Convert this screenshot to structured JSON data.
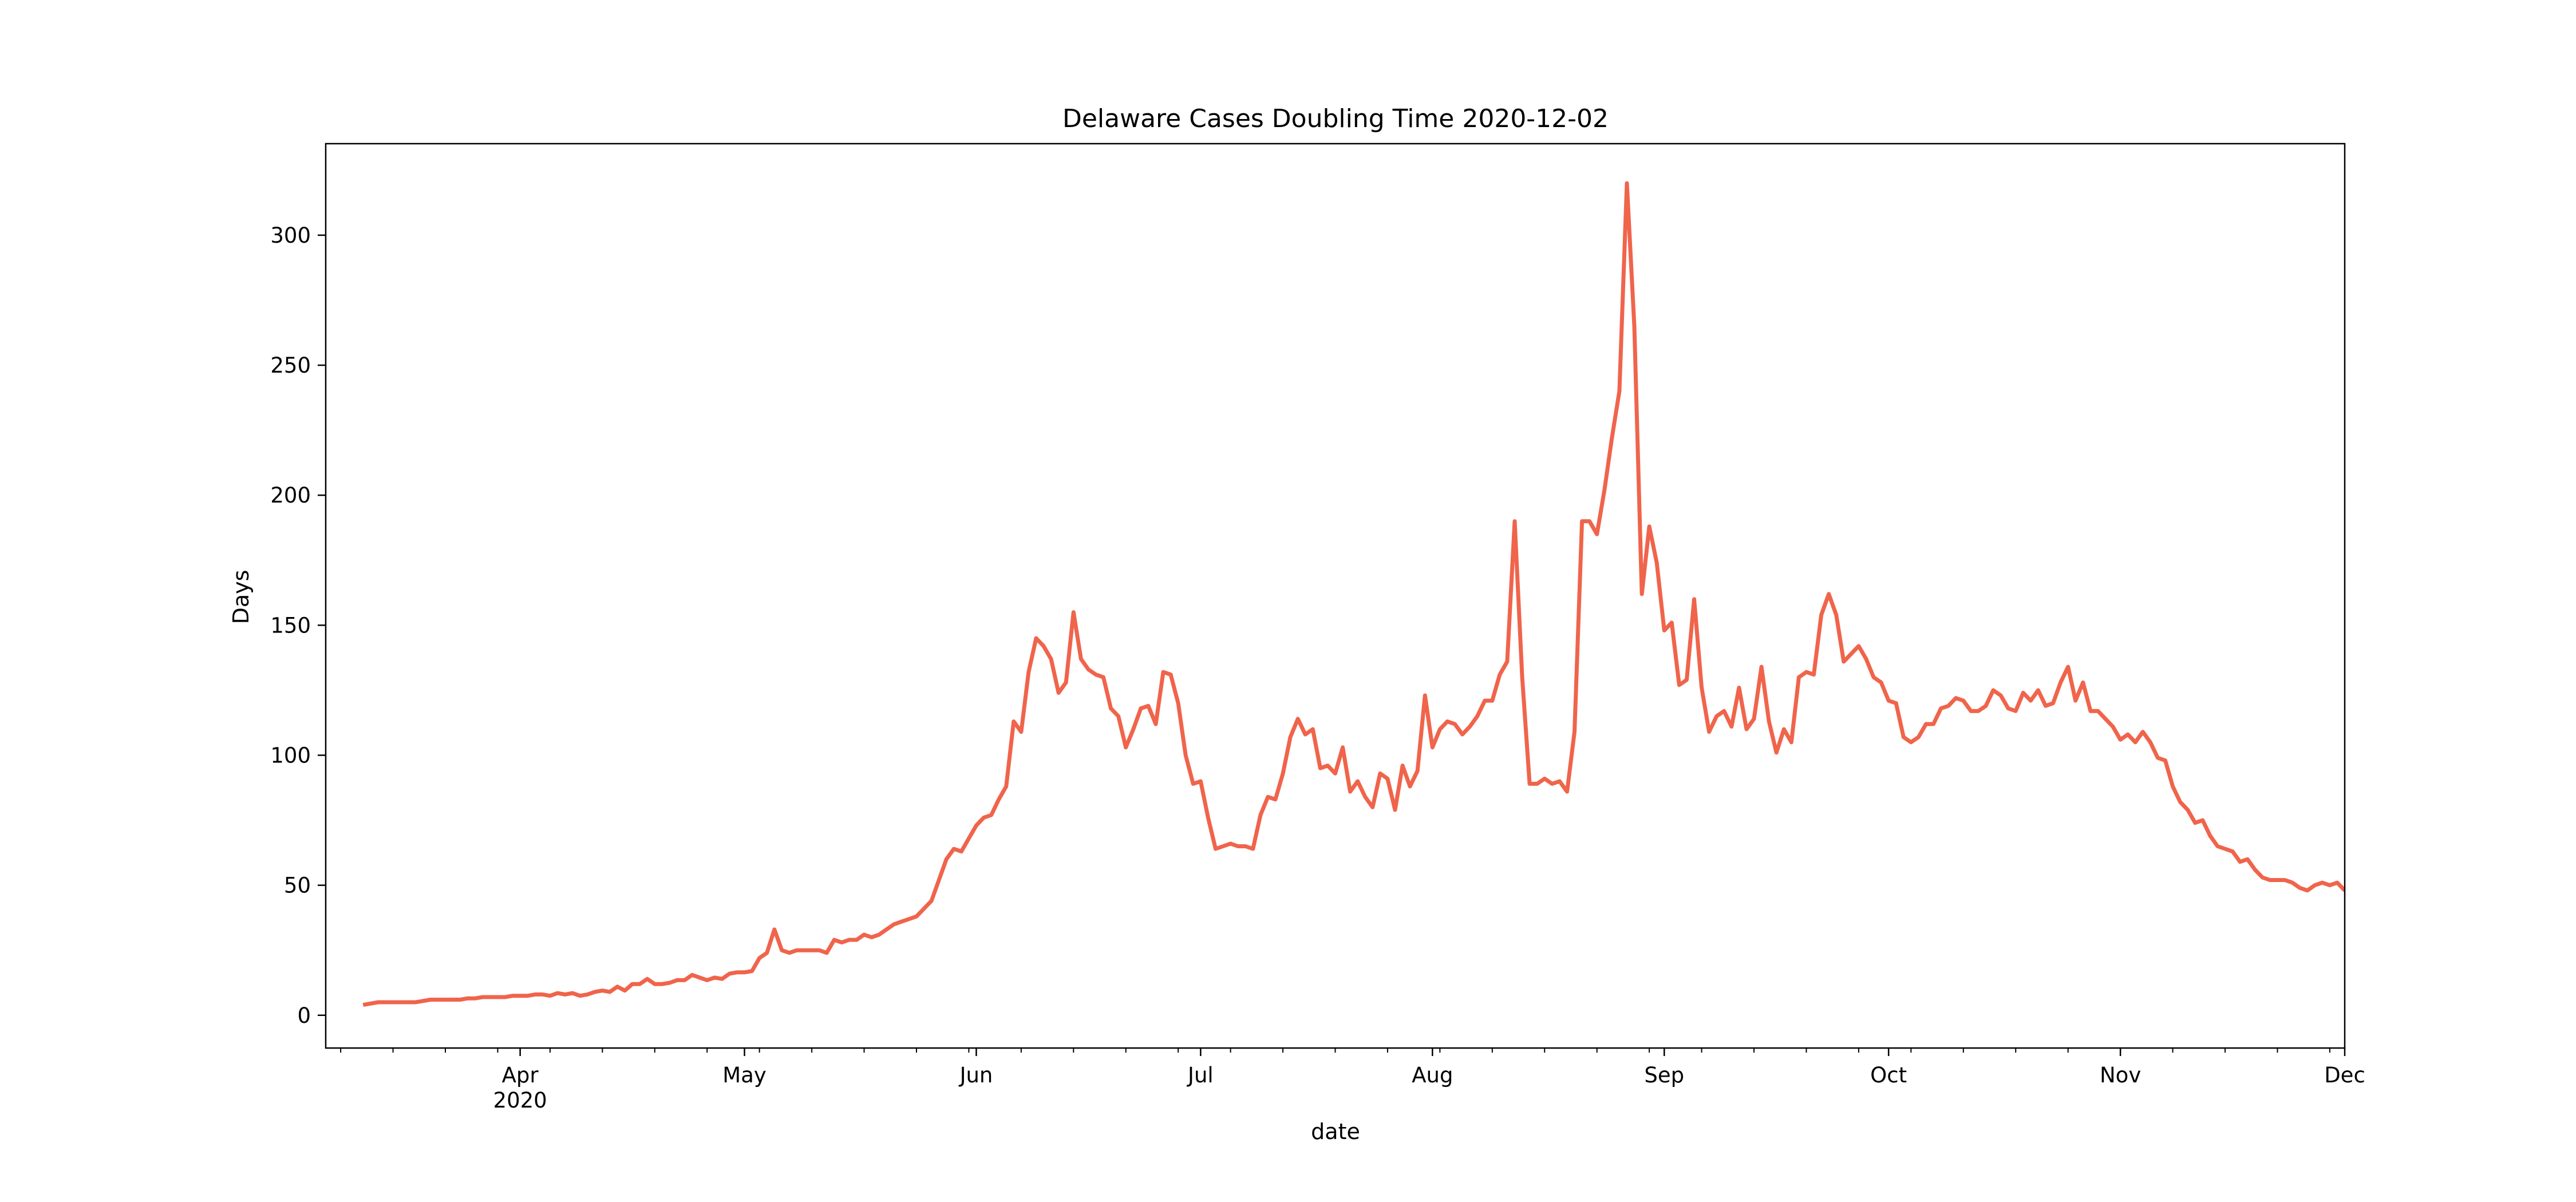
{
  "chart_data": {
    "type": "line",
    "title": "Delaware Cases Doubling Time 2020-12-02",
    "xlabel": "date",
    "ylabel": "Days",
    "color": "#f0644b",
    "xlim": [
      "2020-03-06",
      "2020-12-01"
    ],
    "ylim": [
      -12.6,
      335.2
    ],
    "yticks": [
      0,
      50,
      100,
      150,
      200,
      250,
      300
    ],
    "xticks": [
      {
        "value": "2020-04-01",
        "label": "Apr\n2020"
      },
      {
        "value": "2020-05-01",
        "label": "May"
      },
      {
        "value": "2020-06-01",
        "label": "Jun"
      },
      {
        "value": "2020-07-01",
        "label": "Jul"
      },
      {
        "value": "2020-08-01",
        "label": "Aug"
      },
      {
        "value": "2020-09-01",
        "label": "Sep"
      },
      {
        "value": "2020-10-01",
        "label": "Oct"
      },
      {
        "value": "2020-11-01",
        "label": "Nov"
      },
      {
        "value": "2020-12-01",
        "label": "Dec"
      }
    ],
    "xminorticks": [
      "2020-03-08",
      "2020-03-15",
      "2020-03-22",
      "2020-03-29",
      "2020-04-05",
      "2020-04-12",
      "2020-04-19",
      "2020-04-26",
      "2020-05-03",
      "2020-05-10",
      "2020-05-17",
      "2020-05-24",
      "2020-05-31",
      "2020-06-07",
      "2020-06-14",
      "2020-06-21",
      "2020-06-28",
      "2020-07-05",
      "2020-07-12",
      "2020-07-19",
      "2020-07-26",
      "2020-08-02",
      "2020-08-09",
      "2020-08-16",
      "2020-08-23",
      "2020-08-30",
      "2020-09-06",
      "2020-09-13",
      "2020-09-20",
      "2020-09-27",
      "2020-10-04",
      "2020-10-11",
      "2020-10-18",
      "2020-10-25",
      "2020-11-01",
      "2020-11-08",
      "2020-11-15",
      "2020-11-22",
      "2020-11-29"
    ],
    "x": [
      "2020-03-11",
      "2020-03-12",
      "2020-03-13",
      "2020-03-14",
      "2020-03-15",
      "2020-03-16",
      "2020-03-17",
      "2020-03-18",
      "2020-03-19",
      "2020-03-20",
      "2020-03-21",
      "2020-03-22",
      "2020-03-23",
      "2020-03-24",
      "2020-03-25",
      "2020-03-26",
      "2020-03-27",
      "2020-03-28",
      "2020-03-29",
      "2020-03-30",
      "2020-03-31",
      "2020-04-01",
      "2020-04-02",
      "2020-04-03",
      "2020-04-04",
      "2020-04-05",
      "2020-04-06",
      "2020-04-07",
      "2020-04-08",
      "2020-04-09",
      "2020-04-10",
      "2020-04-11",
      "2020-04-12",
      "2020-04-13",
      "2020-04-14",
      "2020-04-15",
      "2020-04-16",
      "2020-04-17",
      "2020-04-18",
      "2020-04-19",
      "2020-04-20",
      "2020-04-21",
      "2020-04-22",
      "2020-04-23",
      "2020-04-24",
      "2020-04-25",
      "2020-04-26",
      "2020-04-27",
      "2020-04-28",
      "2020-04-29",
      "2020-04-30",
      "2020-05-01",
      "2020-05-02",
      "2020-05-03",
      "2020-05-04",
      "2020-05-05",
      "2020-05-06",
      "2020-05-07",
      "2020-05-08",
      "2020-05-09",
      "2020-05-10",
      "2020-05-11",
      "2020-05-12",
      "2020-05-13",
      "2020-05-14",
      "2020-05-15",
      "2020-05-16",
      "2020-05-17",
      "2020-05-18",
      "2020-05-19",
      "2020-05-20",
      "2020-05-21",
      "2020-05-22",
      "2020-05-23",
      "2020-05-24",
      "2020-05-25",
      "2020-05-26",
      "2020-05-27",
      "2020-05-28",
      "2020-05-29",
      "2020-05-30",
      "2020-05-31",
      "2020-06-01",
      "2020-06-02",
      "2020-06-03",
      "2020-06-04",
      "2020-06-05",
      "2020-06-06",
      "2020-06-07",
      "2020-06-08",
      "2020-06-09",
      "2020-06-10",
      "2020-06-11",
      "2020-06-12",
      "2020-06-13",
      "2020-06-14",
      "2020-06-15",
      "2020-06-16",
      "2020-06-17",
      "2020-06-18",
      "2020-06-19",
      "2020-06-20",
      "2020-06-21",
      "2020-06-22",
      "2020-06-23",
      "2020-06-24",
      "2020-06-25",
      "2020-06-26",
      "2020-06-27",
      "2020-06-28",
      "2020-06-29",
      "2020-06-30",
      "2020-07-01",
      "2020-07-02",
      "2020-07-03",
      "2020-07-04",
      "2020-07-05",
      "2020-07-06",
      "2020-07-07",
      "2020-07-08",
      "2020-07-09",
      "2020-07-10",
      "2020-07-11",
      "2020-07-12",
      "2020-07-13",
      "2020-07-14",
      "2020-07-15",
      "2020-07-16",
      "2020-07-17",
      "2020-07-18",
      "2020-07-19",
      "2020-07-20",
      "2020-07-21",
      "2020-07-22",
      "2020-07-23",
      "2020-07-24",
      "2020-07-25",
      "2020-07-26",
      "2020-07-27",
      "2020-07-28",
      "2020-07-29",
      "2020-07-30",
      "2020-07-31",
      "2020-08-01",
      "2020-08-02",
      "2020-08-03",
      "2020-08-04",
      "2020-08-05",
      "2020-08-06",
      "2020-08-07",
      "2020-08-08",
      "2020-08-09",
      "2020-08-10",
      "2020-08-11",
      "2020-08-12",
      "2020-08-13",
      "2020-08-14",
      "2020-08-15",
      "2020-08-16",
      "2020-08-17",
      "2020-08-18",
      "2020-08-19",
      "2020-08-20",
      "2020-08-21",
      "2020-08-22",
      "2020-08-23",
      "2020-08-24",
      "2020-08-25",
      "2020-08-26",
      "2020-08-27",
      "2020-08-28",
      "2020-08-29",
      "2020-08-30",
      "2020-08-31",
      "2020-09-01",
      "2020-09-02",
      "2020-09-03",
      "2020-09-04",
      "2020-09-05",
      "2020-09-06",
      "2020-09-07",
      "2020-09-08",
      "2020-09-09",
      "2020-09-10",
      "2020-09-11",
      "2020-09-12",
      "2020-09-13",
      "2020-09-14",
      "2020-09-15",
      "2020-09-16",
      "2020-09-17",
      "2020-09-18",
      "2020-09-19",
      "2020-09-20",
      "2020-09-21",
      "2020-09-22",
      "2020-09-23",
      "2020-09-24",
      "2020-09-25",
      "2020-09-26",
      "2020-09-27",
      "2020-09-28",
      "2020-09-29",
      "2020-09-30",
      "2020-10-01",
      "2020-10-02",
      "2020-10-03",
      "2020-10-04",
      "2020-10-05",
      "2020-10-06",
      "2020-10-07",
      "2020-10-08",
      "2020-10-09",
      "2020-10-10",
      "2020-10-11",
      "2020-10-12",
      "2020-10-13",
      "2020-10-14",
      "2020-10-15",
      "2020-10-16",
      "2020-10-17",
      "2020-10-18",
      "2020-10-19",
      "2020-10-20",
      "2020-10-21",
      "2020-10-22",
      "2020-10-23",
      "2020-10-24",
      "2020-10-25",
      "2020-10-26",
      "2020-10-27",
      "2020-10-28",
      "2020-10-29",
      "2020-10-30",
      "2020-10-31",
      "2020-11-01",
      "2020-11-02",
      "2020-11-03",
      "2020-11-04",
      "2020-11-05",
      "2020-11-06",
      "2020-11-07",
      "2020-11-08",
      "2020-11-09",
      "2020-11-10",
      "2020-11-11",
      "2020-11-12",
      "2020-11-13",
      "2020-11-14",
      "2020-11-15",
      "2020-11-16",
      "2020-11-17",
      "2020-11-18",
      "2020-11-19",
      "2020-11-20",
      "2020-11-21",
      "2020-11-22",
      "2020-11-23",
      "2020-11-24",
      "2020-11-25",
      "2020-11-26",
      "2020-11-27",
      "2020-11-28",
      "2020-11-29",
      "2020-11-30",
      "2020-12-01"
    ],
    "values": [
      4,
      4.5,
      5,
      5,
      5,
      5,
      5,
      5,
      5.5,
      6,
      6,
      6,
      6,
      6,
      6.5,
      6.5,
      7,
      7,
      7,
      7,
      7.5,
      7.5,
      7.5,
      8,
      8,
      7.5,
      8.5,
      8,
      8.5,
      7.5,
      8,
      9,
      9.5,
      9,
      11,
      9.5,
      12,
      12,
      14,
      12,
      12,
      12.5,
      13.5,
      13.5,
      15.5,
      14.5,
      13.5,
      14.5,
      14,
      16,
      16.5,
      16.5,
      17,
      22,
      24,
      33,
      25,
      24,
      25,
      25,
      25,
      25,
      24,
      29,
      28,
      29,
      29,
      31,
      30,
      31,
      33,
      35,
      36,
      37,
      38,
      41,
      44,
      52,
      60,
      64,
      63,
      68,
      73,
      76,
      77,
      83,
      88,
      113,
      109,
      132,
      145,
      142,
      137,
      124,
      128,
      155,
      137,
      133,
      131,
      130,
      118,
      115,
      103,
      110,
      118,
      119,
      112,
      132,
      131,
      120,
      100,
      89,
      90,
      76,
      64,
      65,
      66,
      65,
      65,
      64,
      77,
      84,
      83,
      93,
      107,
      114,
      108,
      110,
      95,
      96,
      93,
      103,
      86,
      90,
      84,
      80,
      93,
      91,
      79,
      96,
      88,
      94,
      123,
      103,
      110,
      113,
      112,
      108,
      111,
      115,
      121,
      121,
      131,
      136,
      190,
      130,
      89,
      89,
      91,
      89,
      90,
      86,
      109,
      190,
      190,
      185,
      202,
      222,
      240,
      320,
      265,
      162,
      188,
      174,
      148,
      151,
      127,
      129,
      160,
      126,
      109,
      115,
      117,
      111,
      126,
      110,
      114,
      134,
      113,
      101,
      110,
      105,
      130,
      132,
      131,
      154,
      162,
      154,
      136,
      139,
      142,
      137,
      130,
      128,
      121,
      120,
      107,
      105,
      107,
      112,
      112,
      118,
      119,
      122,
      121,
      117,
      117,
      119,
      125,
      123,
      118,
      117,
      124,
      121,
      125,
      119,
      120,
      128,
      134,
      121,
      128,
      117,
      117,
      114,
      111,
      106,
      108,
      105,
      109,
      105,
      99,
      98,
      88,
      82,
      79,
      74,
      75,
      69,
      65,
      64,
      63,
      59,
      60,
      56,
      53,
      52,
      52,
      52,
      51,
      49,
      48,
      50,
      51,
      50,
      51,
      48
    ]
  }
}
